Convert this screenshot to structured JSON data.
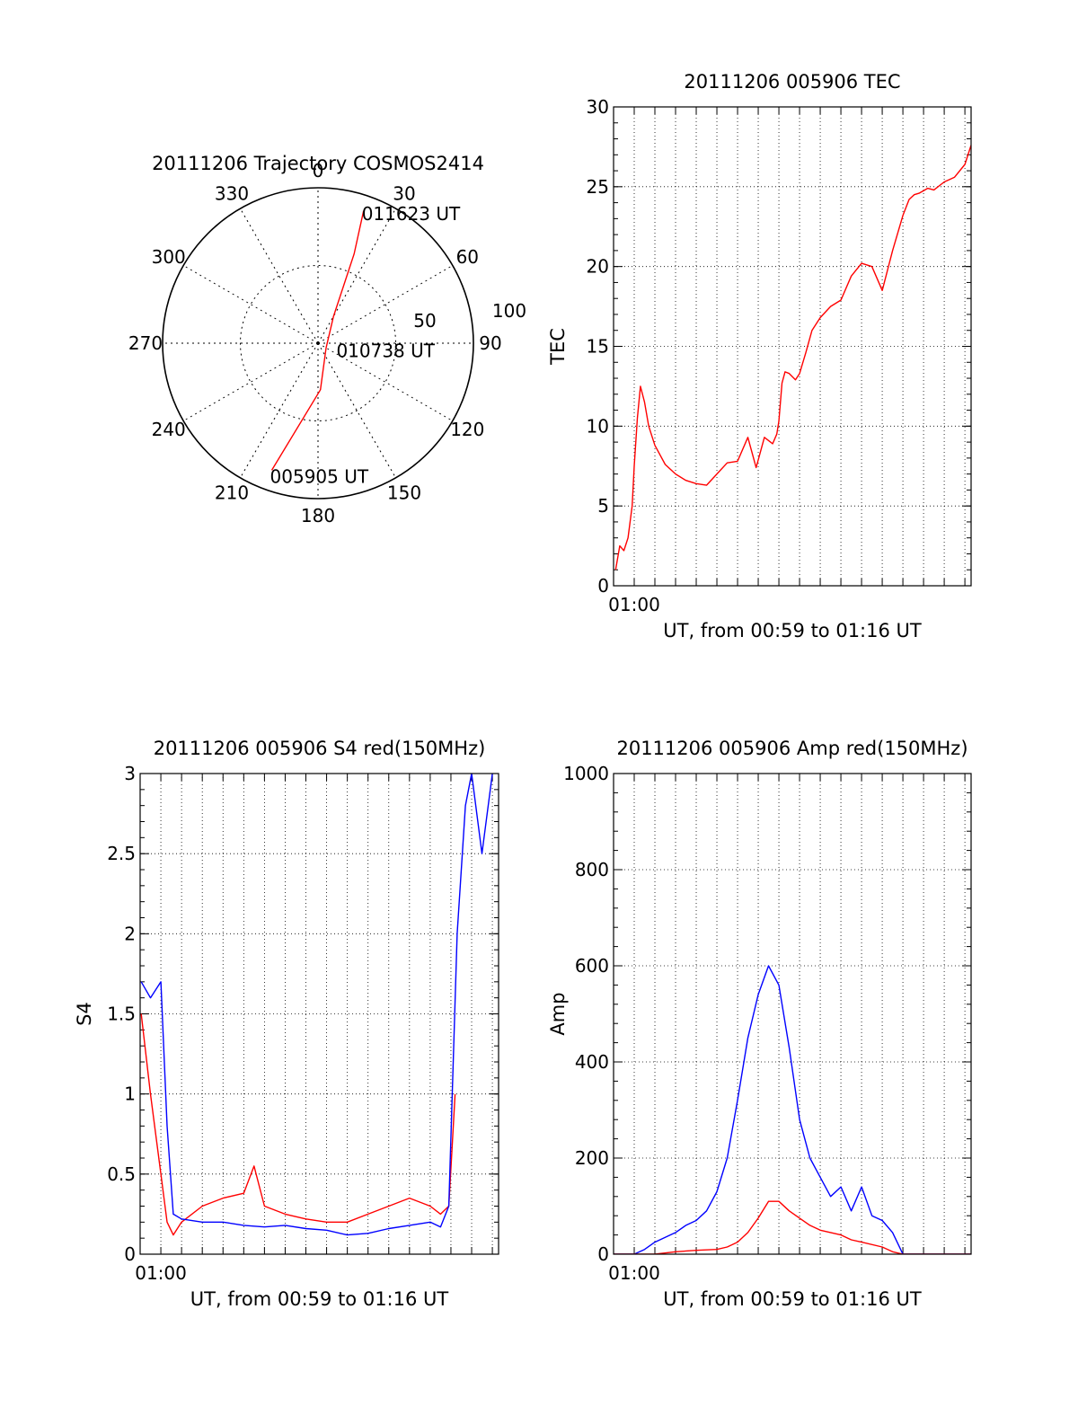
{
  "colors": {
    "red": "#ff0000",
    "blue": "#0000ff",
    "axis": "#000000",
    "grid": "#000000"
  },
  "chart_data": [
    {
      "id": "trajectory",
      "type": "polar",
      "title": "20111206 Trajectory COSMOS2414",
      "azimuth_labels": [
        "0",
        "30",
        "60",
        "90",
        "120",
        "150",
        "180",
        "210",
        "240",
        "270",
        "300",
        "330"
      ],
      "radial_labels": [
        "50",
        "100"
      ],
      "rmax": 100,
      "trajectory": {
        "points": [
          {
            "az": 200.0,
            "r": 87.0
          },
          {
            "az": 177.0,
            "r": 30.0
          },
          {
            "az": 120.0,
            "r": 6.0
          },
          {
            "az": 30.0,
            "r": 20.0
          },
          {
            "az": 22.0,
            "r": 62.0
          },
          {
            "az": 19.0,
            "r": 90.0
          }
        ],
        "time_labels": [
          {
            "text": "005905 UT",
            "az": 200.0,
            "r": 87.0
          },
          {
            "text": "010738 UT",
            "az": 100.0,
            "r": 12.0
          },
          {
            "text": "011623 UT",
            "az": 19.0,
            "r": 90.0
          }
        ]
      }
    },
    {
      "id": "tec",
      "type": "line",
      "title": "20111206 005906 TEC",
      "xlabel": "UT, from 00:59 to 01:16 UT",
      "ylabel": "TEC",
      "xlim": [
        0,
        17.3
      ],
      "ylim": [
        0,
        30
      ],
      "yticks": [
        "0",
        "5",
        "10",
        "15",
        "20",
        "25",
        "30"
      ],
      "xtick_label": {
        "value": 1.0,
        "text": "01:00"
      },
      "series": [
        {
          "color": "red",
          "x": [
            0.1,
            0.3,
            0.5,
            0.7,
            0.8,
            0.9,
            1.0,
            1.15,
            1.3,
            1.5,
            1.7,
            2.0,
            2.5,
            3.0,
            3.5,
            4.0,
            4.5,
            5.0,
            5.5,
            6.0,
            6.5,
            6.9,
            7.3,
            7.7,
            7.9,
            8.0,
            8.15,
            8.3,
            8.5,
            8.8,
            9.0,
            9.3,
            9.6,
            10.0,
            10.5,
            11.0,
            11.5,
            12.0,
            12.5,
            13.0,
            13.5,
            14.0,
            14.3,
            14.55,
            14.8,
            15.2,
            15.5,
            16.0,
            16.5,
            17.0,
            17.3
          ],
          "y": [
            1.0,
            2.5,
            2.2,
            3.0,
            4.0,
            5.0,
            7.5,
            10.5,
            12.5,
            11.5,
            10.0,
            8.8,
            7.6,
            7.0,
            6.6,
            6.4,
            6.3,
            7.0,
            7.7,
            7.8,
            9.3,
            7.4,
            9.3,
            8.9,
            9.5,
            10.3,
            12.7,
            13.4,
            13.3,
            12.9,
            13.3,
            14.6,
            16.0,
            16.8,
            17.5,
            17.9,
            19.4,
            20.2,
            20.0,
            18.5,
            21.0,
            23.2,
            24.2,
            24.5,
            24.6,
            24.9,
            24.8,
            25.3,
            25.6,
            26.4,
            27.6
          ]
        }
      ]
    },
    {
      "id": "s4",
      "type": "line",
      "title": "20111206 005906 S4 red(150MHz)",
      "xlabel": "UT, from 00:59 to 01:16 UT",
      "ylabel": "S4",
      "xlim": [
        0,
        17.3
      ],
      "ylim": [
        0,
        3
      ],
      "yticks": [
        "0",
        "0.5",
        "1",
        "1.5",
        "2",
        "2.5",
        "3"
      ],
      "xtick_label": {
        "value": 1.0,
        "text": "01:00"
      },
      "series": [
        {
          "color": "red",
          "x": [
            0.05,
            0.5,
            1.0,
            1.3,
            1.6,
            2.0,
            3.0,
            4.0,
            5.0,
            5.5,
            6.0,
            7.0,
            8.0,
            9.0,
            10.0,
            11.0,
            12.0,
            13.0,
            14.0,
            14.5,
            14.9,
            15.2
          ],
          "y": [
            1.5,
            1.0,
            0.5,
            0.2,
            0.12,
            0.2,
            0.3,
            0.35,
            0.38,
            0.55,
            0.3,
            0.25,
            0.22,
            0.2,
            0.2,
            0.25,
            0.3,
            0.35,
            0.3,
            0.25,
            0.3,
            1.0
          ]
        },
        {
          "color": "blue",
          "x": [
            0.05,
            0.5,
            1.0,
            1.3,
            1.6,
            2.0,
            3.0,
            4.0,
            5.0,
            6.0,
            7.0,
            8.0,
            9.0,
            10.0,
            11.0,
            12.0,
            13.0,
            14.0,
            14.5,
            14.9,
            15.3,
            15.7,
            16.0,
            16.5,
            17.0
          ],
          "y": [
            1.7,
            1.6,
            1.7,
            0.8,
            0.25,
            0.22,
            0.2,
            0.2,
            0.18,
            0.17,
            0.18,
            0.16,
            0.15,
            0.12,
            0.13,
            0.16,
            0.18,
            0.2,
            0.17,
            0.3,
            2.0,
            2.8,
            3.0,
            2.5,
            3.0
          ]
        }
      ]
    },
    {
      "id": "amp",
      "type": "line",
      "title": "20111206 005906 Amp red(150MHz)",
      "xlabel": "UT, from 00:59 to 01:16 UT",
      "ylabel": "Amp",
      "xlim": [
        0,
        17.3
      ],
      "ylim": [
        0,
        1000
      ],
      "yticks": [
        "0",
        "200",
        "400",
        "600",
        "800",
        "1000"
      ],
      "xtick_label": {
        "value": 1.0,
        "text": "01:00"
      },
      "series": [
        {
          "color": "blue",
          "x": [
            0.0,
            1.0,
            1.5,
            2.0,
            3.0,
            3.5,
            4.0,
            4.5,
            5.0,
            5.5,
            6.0,
            6.5,
            7.0,
            7.5,
            8.0,
            8.5,
            9.0,
            9.5,
            10.0,
            10.5,
            11.0,
            11.5,
            12.0,
            12.5,
            13.0,
            13.5,
            14.0,
            14.5,
            15.0,
            17.3
          ],
          "y": [
            0,
            0,
            10,
            25,
            45,
            60,
            70,
            90,
            130,
            200,
            320,
            450,
            540,
            600,
            560,
            430,
            280,
            200,
            160,
            120,
            140,
            90,
            140,
            80,
            70,
            45,
            0,
            0,
            0,
            0
          ]
        },
        {
          "color": "red",
          "x": [
            0.0,
            2.0,
            3.0,
            4.0,
            5.0,
            5.5,
            6.0,
            6.5,
            7.0,
            7.5,
            8.0,
            8.5,
            9.0,
            9.5,
            10.0,
            10.5,
            11.0,
            11.5,
            12.0,
            13.0,
            13.5,
            14.0,
            17.3
          ],
          "y": [
            0,
            0,
            5,
            8,
            10,
            15,
            25,
            45,
            75,
            110,
            110,
            90,
            75,
            60,
            50,
            45,
            40,
            30,
            25,
            15,
            5,
            0,
            0
          ]
        }
      ]
    }
  ]
}
